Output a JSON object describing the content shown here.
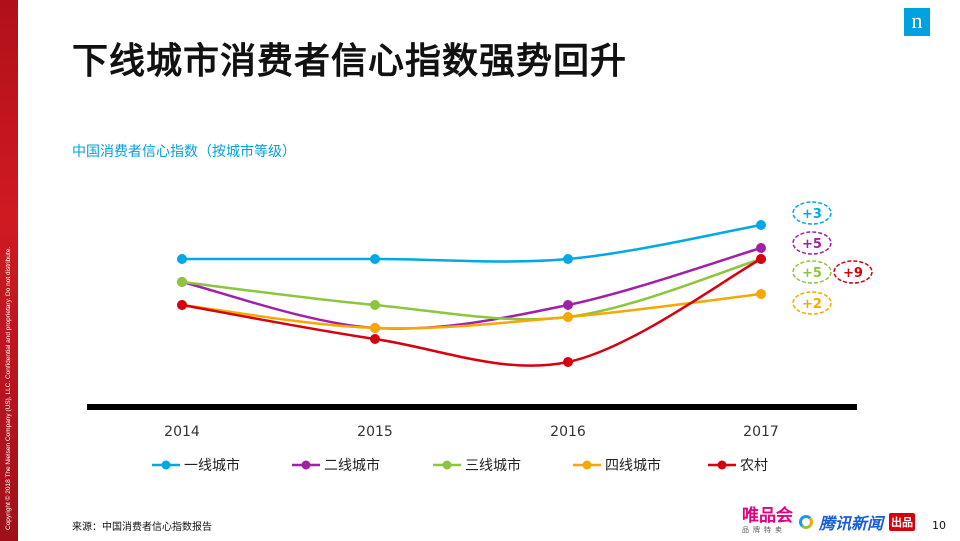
{
  "title": "下线城市消费者信心指数强势回升",
  "copyright": "Copyright © 2018 The Nielsen Company (US), LLC. Confidential and proprietary. Do not distribute.",
  "logo": "n",
  "source": "来源：中国消费者信心指数报告",
  "page_number": "10",
  "brands": {
    "vip": "唯品会",
    "vip_sub": "品牌特卖",
    "tencent": "腾讯新闻",
    "tencent_tag": "出品"
  },
  "chart_data": {
    "type": "line",
    "title": "中国消费者信心指数（按城市等级）",
    "categories": [
      "2014",
      "2015",
      "2016",
      "2017"
    ],
    "xlabel": "",
    "ylabel": "",
    "grid": false,
    "legend_position": "bottom",
    "y_axis_labels_shown": false,
    "series": [
      {
        "name": "一线城市",
        "color": "#00a9e6",
        "values": [
          15.1,
          15.1,
          15.1,
          18.5
        ],
        "change_label": "+3"
      },
      {
        "name": "二线城市",
        "color": "#a21fa8",
        "values": [
          12.8,
          8.2,
          10.5,
          16.2
        ],
        "change_label": "+5"
      },
      {
        "name": "三线城市",
        "color": "#8cc63f",
        "values": [
          12.8,
          10.5,
          9.3,
          15.1
        ],
        "change_label": "+5"
      },
      {
        "name": "四线城市",
        "color": "#f7a800",
        "values": [
          10.5,
          8.2,
          9.3,
          11.6
        ],
        "change_label": "+2"
      },
      {
        "name": "农村",
        "color": "#d7000f",
        "values": [
          10.5,
          7.1,
          4.8,
          15.1
        ],
        "change_label": "+9"
      }
    ]
  }
}
